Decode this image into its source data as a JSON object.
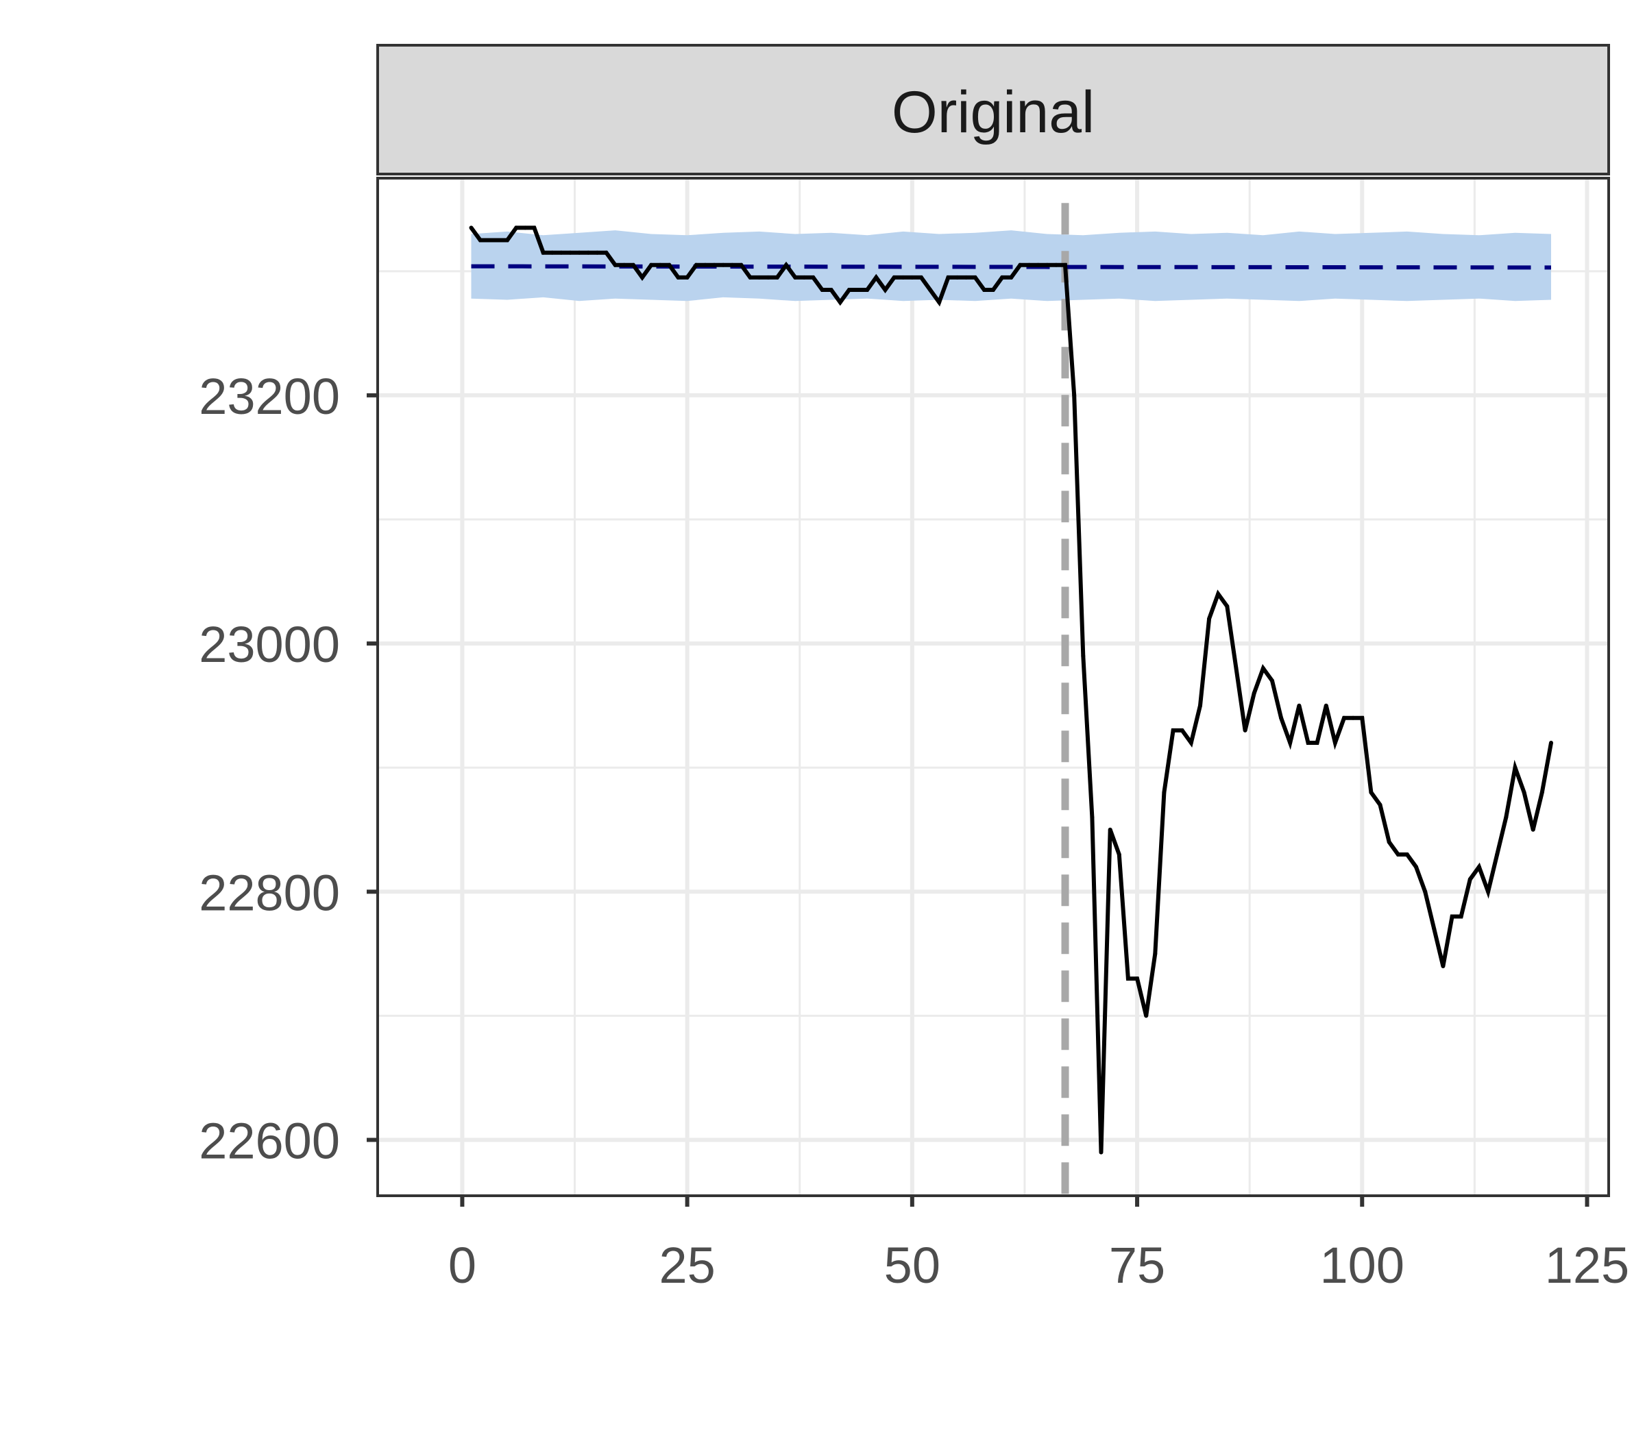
{
  "chart_data": {
    "type": "line",
    "title": "",
    "panel_title": "Original",
    "xlabel": "",
    "ylabel": "",
    "xlim": [
      -9.4,
      127.4
    ],
    "ylim": [
      22555,
      23375
    ],
    "x_ticks": [
      0,
      25,
      50,
      75,
      100,
      125
    ],
    "y_ticks": [
      22600,
      22800,
      23000,
      23200
    ],
    "grid": true,
    "intervention_x": 67,
    "series": [
      {
        "name": "observed",
        "color": "#000000",
        "x": [
          1,
          2,
          3,
          4,
          5,
          6,
          7,
          8,
          9,
          10,
          11,
          12,
          13,
          14,
          15,
          16,
          17,
          18,
          19,
          20,
          21,
          22,
          23,
          24,
          25,
          26,
          27,
          28,
          29,
          30,
          31,
          32,
          33,
          34,
          35,
          36,
          37,
          38,
          39,
          40,
          41,
          42,
          43,
          44,
          45,
          46,
          47,
          48,
          49,
          50,
          51,
          52,
          53,
          54,
          55,
          56,
          57,
          58,
          59,
          60,
          61,
          62,
          63,
          64,
          65,
          66,
          67,
          68,
          69,
          70,
          71,
          72,
          73,
          74,
          75,
          76,
          77,
          78,
          79,
          80,
          81,
          82,
          83,
          84,
          85,
          86,
          87,
          88,
          89,
          90,
          91,
          92,
          93,
          94,
          95,
          96,
          97,
          98,
          99,
          100,
          101,
          102,
          103,
          104,
          105,
          106,
          107,
          108,
          109,
          110,
          111,
          112,
          113,
          114,
          115,
          116,
          117,
          118,
          119,
          120,
          121
        ],
        "values": [
          23335,
          23325,
          23325,
          23325,
          23325,
          23335,
          23335,
          23335,
          23315,
          23315,
          23315,
          23315,
          23315,
          23315,
          23315,
          23315,
          23305,
          23305,
          23305,
          23295,
          23305,
          23305,
          23305,
          23295,
          23295,
          23305,
          23305,
          23305,
          23305,
          23305,
          23305,
          23295,
          23295,
          23295,
          23295,
          23305,
          23295,
          23295,
          23295,
          23285,
          23285,
          23275,
          23285,
          23285,
          23285,
          23295,
          23285,
          23295,
          23295,
          23295,
          23295,
          23285,
          23275,
          23295,
          23295,
          23295,
          23295,
          23285,
          23285,
          23295,
          23295,
          23305,
          23305,
          23305,
          23305,
          23305,
          23305,
          23200,
          22990,
          22860,
          22590,
          22850,
          22830,
          22730,
          22730,
          22700,
          22750,
          22880,
          22930,
          22930,
          22920,
          22950,
          23020,
          23040,
          23030,
          22980,
          22930,
          22960,
          22980,
          22970,
          22940,
          22920,
          22950,
          22920,
          22920,
          22950,
          22920,
          22940,
          22940,
          22940,
          22880,
          22870,
          22840,
          22830,
          22830,
          22820,
          22800,
          22770,
          22740,
          22780,
          22780,
          22810,
          22820,
          22800,
          22830,
          22860,
          22900,
          22880,
          22850,
          22880,
          22920
        ]
      },
      {
        "name": "predicted",
        "color": "#000080",
        "style": "dashed",
        "x": [
          1,
          121
        ],
        "values": [
          23304,
          23303
        ]
      }
    ],
    "band": {
      "name": "prediction interval",
      "color": "#bad3ee",
      "x": [
        1,
        5,
        9,
        13,
        17,
        21,
        25,
        29,
        33,
        37,
        41,
        45,
        49,
        53,
        57,
        61,
        65,
        69,
        73,
        77,
        81,
        85,
        89,
        93,
        97,
        101,
        105,
        109,
        113,
        117,
        121
      ],
      "lower": [
        23278,
        23277,
        23279,
        23276,
        23278,
        23277,
        23276,
        23279,
        23278,
        23276,
        23277,
        23278,
        23276,
        23277,
        23276,
        23278,
        23276,
        23277,
        23278,
        23276,
        23277,
        23278,
        23277,
        23276,
        23278,
        23277,
        23276,
        23277,
        23278,
        23276,
        23277
      ],
      "upper": [
        23330,
        23332,
        23329,
        23331,
        23333,
        23330,
        23329,
        23331,
        23332,
        23330,
        23331,
        23329,
        23332,
        23330,
        23331,
        23333,
        23330,
        23329,
        23331,
        23332,
        23330,
        23331,
        23329,
        23332,
        23330,
        23331,
        23332,
        23330,
        23329,
        23331,
        23330
      ]
    }
  }
}
